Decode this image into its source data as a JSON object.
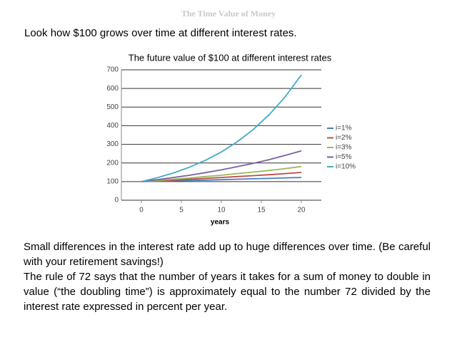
{
  "header": {
    "title": "The Time Value of Money"
  },
  "intro": "Look how $100 grows over time at different interest rates.",
  "paragraphs": [
    "Small differences in the interest rate add up to huge differences over time. (Be careful with your retirement savings!)",
    "The rule of 72 says that the number of years it takes for a sum of money to double in value (“the doubling time”) is approximately equal to the number 72 divided by the interest rate expressed in percent per year."
  ],
  "chart_data": {
    "type": "line",
    "title": "The future value of $100 at different interest rates",
    "x_label": "years",
    "x": [
      0,
      2,
      4,
      6,
      8,
      10,
      12,
      14,
      16,
      18,
      20
    ],
    "series": [
      {
        "name": "i=1%",
        "color": "#4a7ebb",
        "values": [
          100,
          102,
          104,
          106,
          108,
          110,
          113,
          115,
          117,
          120,
          122
        ]
      },
      {
        "name": "i=2%",
        "color": "#be4b48",
        "values": [
          100,
          104,
          108,
          113,
          117,
          122,
          127,
          132,
          137,
          143,
          149
        ]
      },
      {
        "name": "i=3%",
        "color": "#98b954",
        "values": [
          100,
          106,
          113,
          119,
          127,
          134,
          143,
          151,
          160,
          170,
          181
        ]
      },
      {
        "name": "i=5%",
        "color": "#7d60a0",
        "values": [
          100,
          110,
          122,
          134,
          148,
          163,
          180,
          198,
          218,
          241,
          265
        ]
      },
      {
        "name": "i=10%",
        "color": "#46aac5",
        "values": [
          100,
          121,
          146,
          177,
          214,
          259,
          314,
          380,
          460,
          556,
          673
        ]
      }
    ],
    "xlim": [
      -2.5,
      22.5
    ],
    "xticks": [
      0,
      5,
      10,
      15,
      20
    ],
    "ylim": [
      0,
      700
    ],
    "yticks": [
      0,
      100,
      200,
      300,
      400,
      500,
      600,
      700
    ],
    "grid": true,
    "legend": "right"
  }
}
